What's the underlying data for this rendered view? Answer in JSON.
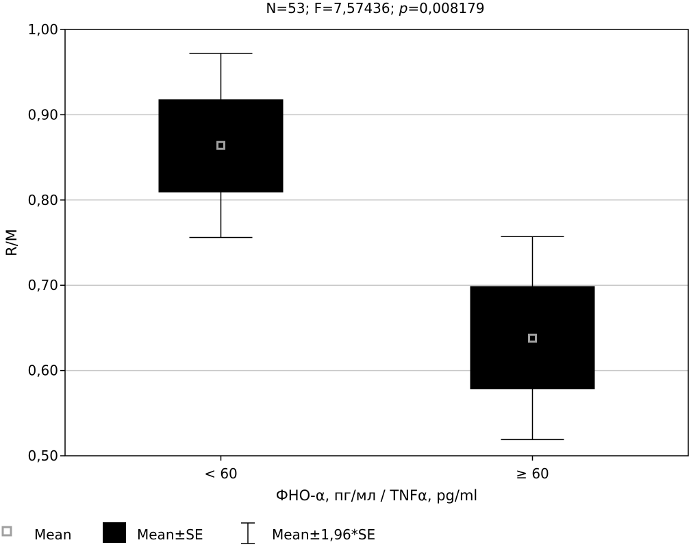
{
  "chart_data": {
    "type": "box",
    "title_parts": [
      "N=53; F=7,57436; ",
      "p",
      "=0,008179"
    ],
    "xlabel": "ФНО-α, пг/мл / TNFα, pg/ml",
    "ylabel": "R/M",
    "ylim": [
      0.5,
      1.0
    ],
    "yticks": [
      0.5,
      0.6,
      0.7,
      0.8,
      0.9,
      1.0
    ],
    "ytick_labels": [
      "0,50",
      "0,60",
      "0,70",
      "0,80",
      "0,90",
      "1,00"
    ],
    "grid": true,
    "categories": [
      "< 60",
      "≥ 60"
    ],
    "mean": [
      0.864,
      0.638
    ],
    "se_low": [
      0.809,
      0.578
    ],
    "se_high": [
      0.918,
      0.699
    ],
    "ci_low": [
      0.756,
      0.519
    ],
    "ci_high": [
      0.972,
      0.757
    ],
    "legend": [
      "Mean",
      "Mean±SE",
      "Mean±1,96*SE"
    ],
    "legend_position": "bottom-left",
    "colors": {
      "box": "#000000",
      "mean_marker": "#a0a0a0",
      "grid": "#c8c8c8"
    }
  }
}
